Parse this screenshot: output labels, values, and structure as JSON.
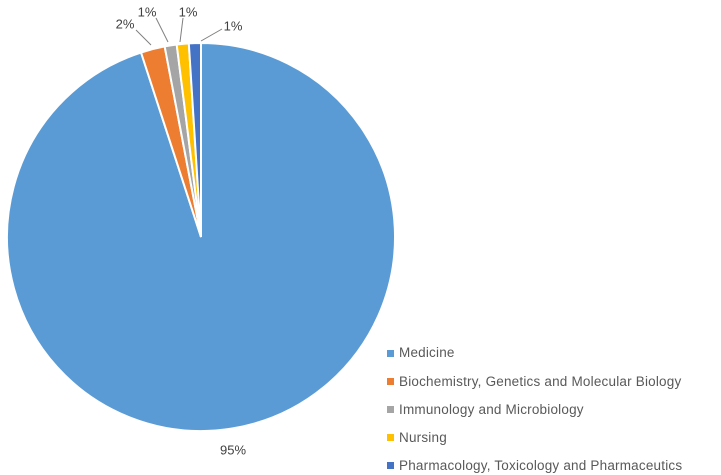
{
  "chart_data": {
    "type": "pie",
    "title": "",
    "start_angle_deg": 0,
    "direction": "clockwise",
    "total": 100,
    "slices": [
      {
        "label": "Medicine",
        "value": 95,
        "pct_label": "95%",
        "color": "#5B9BD5"
      },
      {
        "label": "Biochemistry, Genetics and Molecular Biology",
        "value": 2,
        "pct_label": "2%",
        "color": "#ED7D31"
      },
      {
        "label": "Immunology and Microbiology",
        "value": 1,
        "pct_label": "1%",
        "color": "#A5A5A5"
      },
      {
        "label": "Nursing",
        "value": 1,
        "pct_label": "1%",
        "color": "#FFC000"
      },
      {
        "label": "Pharmacology, Toxicology and Pharmaceutics",
        "value": 1,
        "pct_label": "1%",
        "color": "#4472C4"
      }
    ],
    "legend_position": "bottom-right",
    "slice_border_color": "#FFFFFF",
    "leader_line_color": "#7F7F7F",
    "label_color": "#404040",
    "legend_text_color": "#595959"
  }
}
